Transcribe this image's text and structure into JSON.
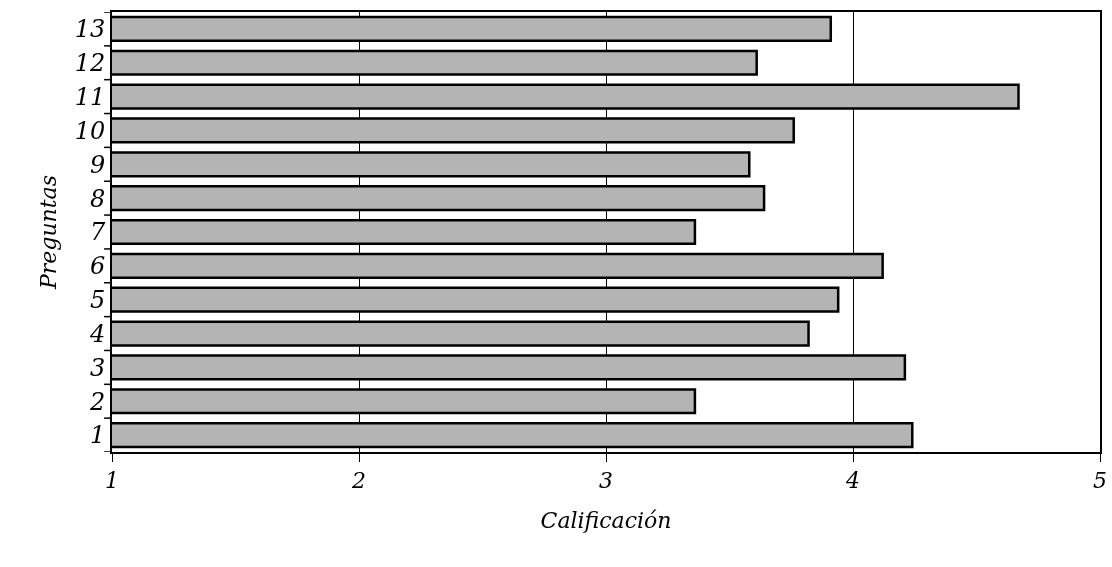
{
  "chart_data": {
    "type": "bar",
    "orientation": "horizontal",
    "xlabel": "Calificación",
    "ylabel": "Preguntas",
    "categories": [
      "13",
      "12",
      "11",
      "10",
      "9",
      "8",
      "7",
      "6",
      "5",
      "4",
      "3",
      "2",
      "1"
    ],
    "values": [
      3.91,
      3.61,
      4.67,
      3.76,
      3.58,
      3.64,
      3.36,
      4.12,
      3.94,
      3.82,
      4.21,
      3.36,
      4.24
    ],
    "color": "#b4b4b4",
    "xlim": [
      1,
      5
    ],
    "xticks": [
      1,
      2,
      3,
      4,
      5
    ],
    "grid": "x",
    "legend": false
  }
}
